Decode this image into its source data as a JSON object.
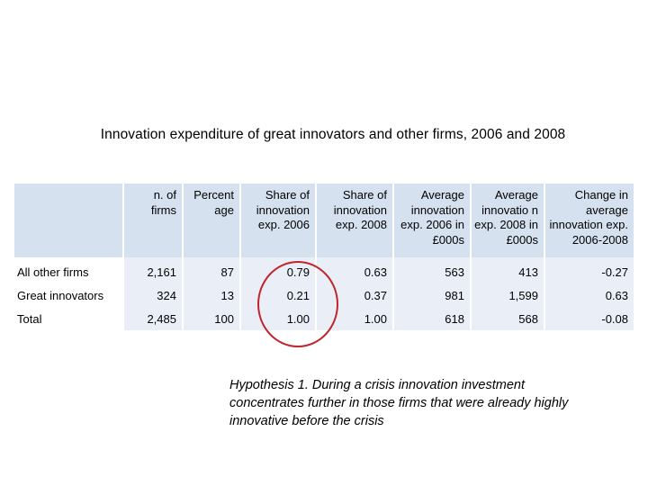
{
  "title": "Innovation expenditure of great innovators and other firms, 2006 and 2008",
  "table": {
    "headers": [
      "",
      "n. of firms",
      "Percent age",
      "Share of innovation exp. 2006",
      "Share of innovation exp. 2008",
      "Average innovation exp. 2006 in £000s",
      "Average innovatio n exp. 2008 in £000s",
      "Change in average innovation exp. 2006-2008"
    ],
    "rows": [
      [
        "All other firms",
        "2,161",
        "87",
        "0.79",
        "0.63",
        "563",
        "413",
        "-0.27"
      ],
      [
        "Great innovators",
        "324",
        "13",
        "0.21",
        "0.37",
        "981",
        "1,599",
        "0.63"
      ],
      [
        "Total",
        "2,485",
        "100",
        "1.00",
        "1.00",
        "618",
        "568",
        "-0.08"
      ]
    ]
  },
  "note": "Hypothesis 1. During a crisis innovation investment concentrates further in those firms that were already highly innovative before the crisis",
  "colors": {
    "header_fill": "#d6e1ef",
    "cell_fill": "#eaeff7",
    "highlight_circle": "#c0252b"
  }
}
